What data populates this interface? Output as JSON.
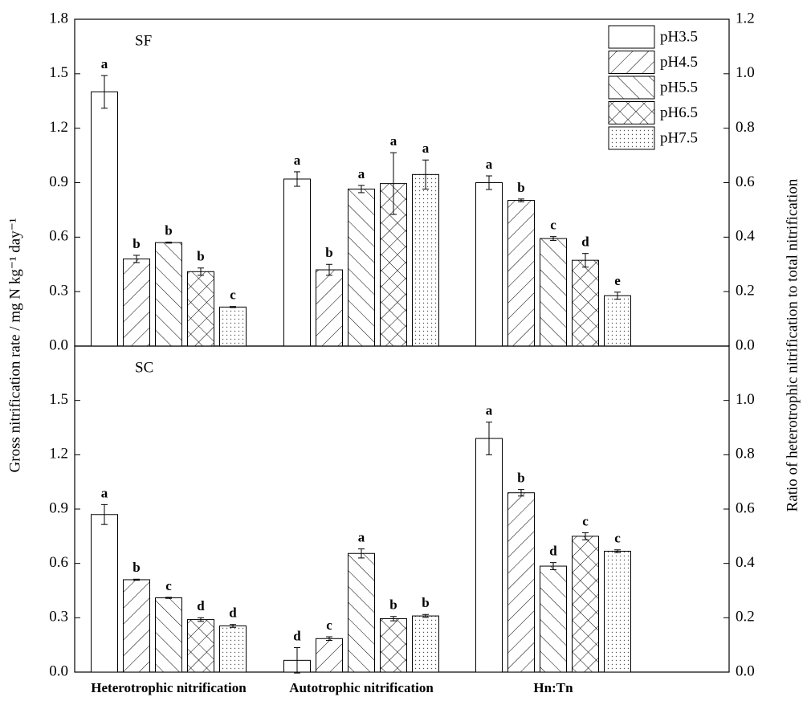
{
  "chart_data": [
    {
      "type": "bar",
      "title": "SF",
      "ylabel": "Gross nitrification rate / mg N kg⁻¹ day⁻¹",
      "y2label": "Ratio of heterotrophic nitrification to total nitrification",
      "category_axes": [
        "y",
        "y",
        "y2"
      ],
      "ylim": [
        0,
        1.8
      ],
      "yticks": [
        {
          "value": 0,
          "label": "0.0"
        },
        0.3,
        0.6,
        0.9,
        1.2,
        1.5,
        1.8
      ],
      "y2lim": [
        0,
        1.2
      ],
      "y2ticks": [
        {
          "value": 0,
          "label": "0.0"
        },
        0.2,
        0.4,
        0.6,
        0.8,
        {
          "value": 1,
          "label": "1.0"
        },
        1.2
      ],
      "legend": "upper right",
      "series": [
        {
          "name": "pH3.5",
          "hatch": "none",
          "values": [
            1.4,
            0.92,
            0.6
          ],
          "errors": [
            0.09,
            0.04,
            0.025
          ],
          "labels": [
            "a",
            "a",
            "a"
          ]
        },
        {
          "name": "pH4.5",
          "hatch": "forward",
          "values": [
            0.48,
            0.42,
            0.535
          ],
          "errors": [
            0.02,
            0.03,
            0.005
          ],
          "labels": [
            "b",
            "b",
            "b"
          ]
        },
        {
          "name": "pH5.5",
          "hatch": "back",
          "values": [
            0.57,
            0.865,
            0.395
          ],
          "errors": [
            0.003,
            0.02,
            0.007
          ],
          "labels": [
            "b",
            "a",
            "c"
          ]
        },
        {
          "name": "pH6.5",
          "hatch": "cross",
          "values": [
            0.41,
            0.895,
            0.315
          ],
          "errors": [
            0.02,
            0.17,
            0.025
          ],
          "labels": [
            "b",
            "a",
            "d"
          ]
        },
        {
          "name": "pH7.5",
          "hatch": "dots",
          "values": [
            0.215,
            0.945,
            0.185
          ],
          "errors": [
            0.003,
            0.08,
            0.013
          ],
          "labels": [
            "c",
            "a",
            "e"
          ]
        }
      ]
    },
    {
      "type": "bar",
      "title": "SC",
      "categories": [
        "Heterotrophic nitrification",
        "Autotrophic nitrification",
        "Hn:Tn"
      ],
      "category_axes": [
        "y",
        "y",
        "y2"
      ],
      "ylim": [
        0,
        1.8
      ],
      "yticks": [
        {
          "value": 0,
          "label": "0.0"
        },
        0.3,
        0.6,
        0.9,
        1.2,
        1.5
      ],
      "y2lim": [
        0,
        1.2
      ],
      "y2ticks": [
        {
          "value": 0,
          "label": "0.0"
        },
        0.2,
        0.4,
        0.6,
        0.8,
        {
          "value": 1,
          "label": "1.0"
        }
      ],
      "series": [
        {
          "hatch": "none",
          "values": [
            0.87,
            0.065,
            0.86
          ],
          "errors": [
            0.055,
            0.07,
            0.06
          ],
          "labels": [
            "a",
            "d",
            "a"
          ]
        },
        {
          "hatch": "forward",
          "values": [
            0.51,
            0.185,
            0.66
          ],
          "errors": [
            0.003,
            0.01,
            0.012
          ],
          "labels": [
            "b",
            "c",
            "b"
          ]
        },
        {
          "hatch": "back",
          "values": [
            0.41,
            0.655,
            0.39
          ],
          "errors": [
            0.003,
            0.025,
            0.013
          ],
          "labels": [
            "c",
            "a",
            "d"
          ]
        },
        {
          "hatch": "cross",
          "values": [
            0.29,
            0.295,
            0.5
          ],
          "errors": [
            0.01,
            0.012,
            0.013
          ],
          "labels": [
            "d",
            "b",
            "c"
          ]
        },
        {
          "hatch": "dots",
          "values": [
            0.255,
            0.31,
            0.445
          ],
          "errors": [
            0.008,
            0.008,
            0.005
          ],
          "labels": [
            "d",
            "b",
            "c"
          ]
        }
      ]
    }
  ]
}
